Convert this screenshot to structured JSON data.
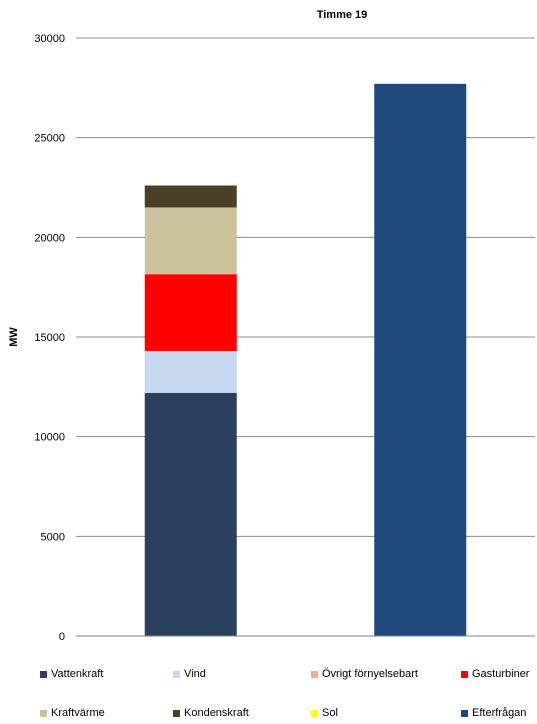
{
  "chart_data": {
    "type": "bar",
    "stacked": true,
    "title": "Timme 19",
    "xlabel": "",
    "ylabel": "MW",
    "ylim": [
      0,
      30000
    ],
    "yticks": [
      0,
      5000,
      10000,
      15000,
      20000,
      25000,
      30000
    ],
    "grid": true,
    "legend_position": "bottom",
    "categories": [
      "",
      ""
    ],
    "series": [
      {
        "name": "Vattenkraft",
        "color": "#2b3f5e",
        "values": [
          12200,
          0
        ]
      },
      {
        "name": "Vind",
        "color": "#c6d9f0",
        "values": [
          2100,
          0
        ]
      },
      {
        "name": "Övrigt förnyelsebart",
        "color": "#f4a6a0",
        "values": [
          0,
          0
        ]
      },
      {
        "name": "Gasturbiner",
        "color": "#ff0000",
        "values": [
          3850,
          0
        ]
      },
      {
        "name": "Kraftvärme",
        "color": "#c9c29b",
        "values": [
          3350,
          0
        ]
      },
      {
        "name": "Kondenskraft",
        "color": "#4a4026",
        "values": [
          1100,
          0
        ]
      },
      {
        "name": "Sol",
        "color": "#ffff00",
        "values": [
          0,
          0
        ]
      },
      {
        "name": "Efterfrågan",
        "color": "#1f497d",
        "values": [
          0,
          27700
        ]
      }
    ]
  }
}
